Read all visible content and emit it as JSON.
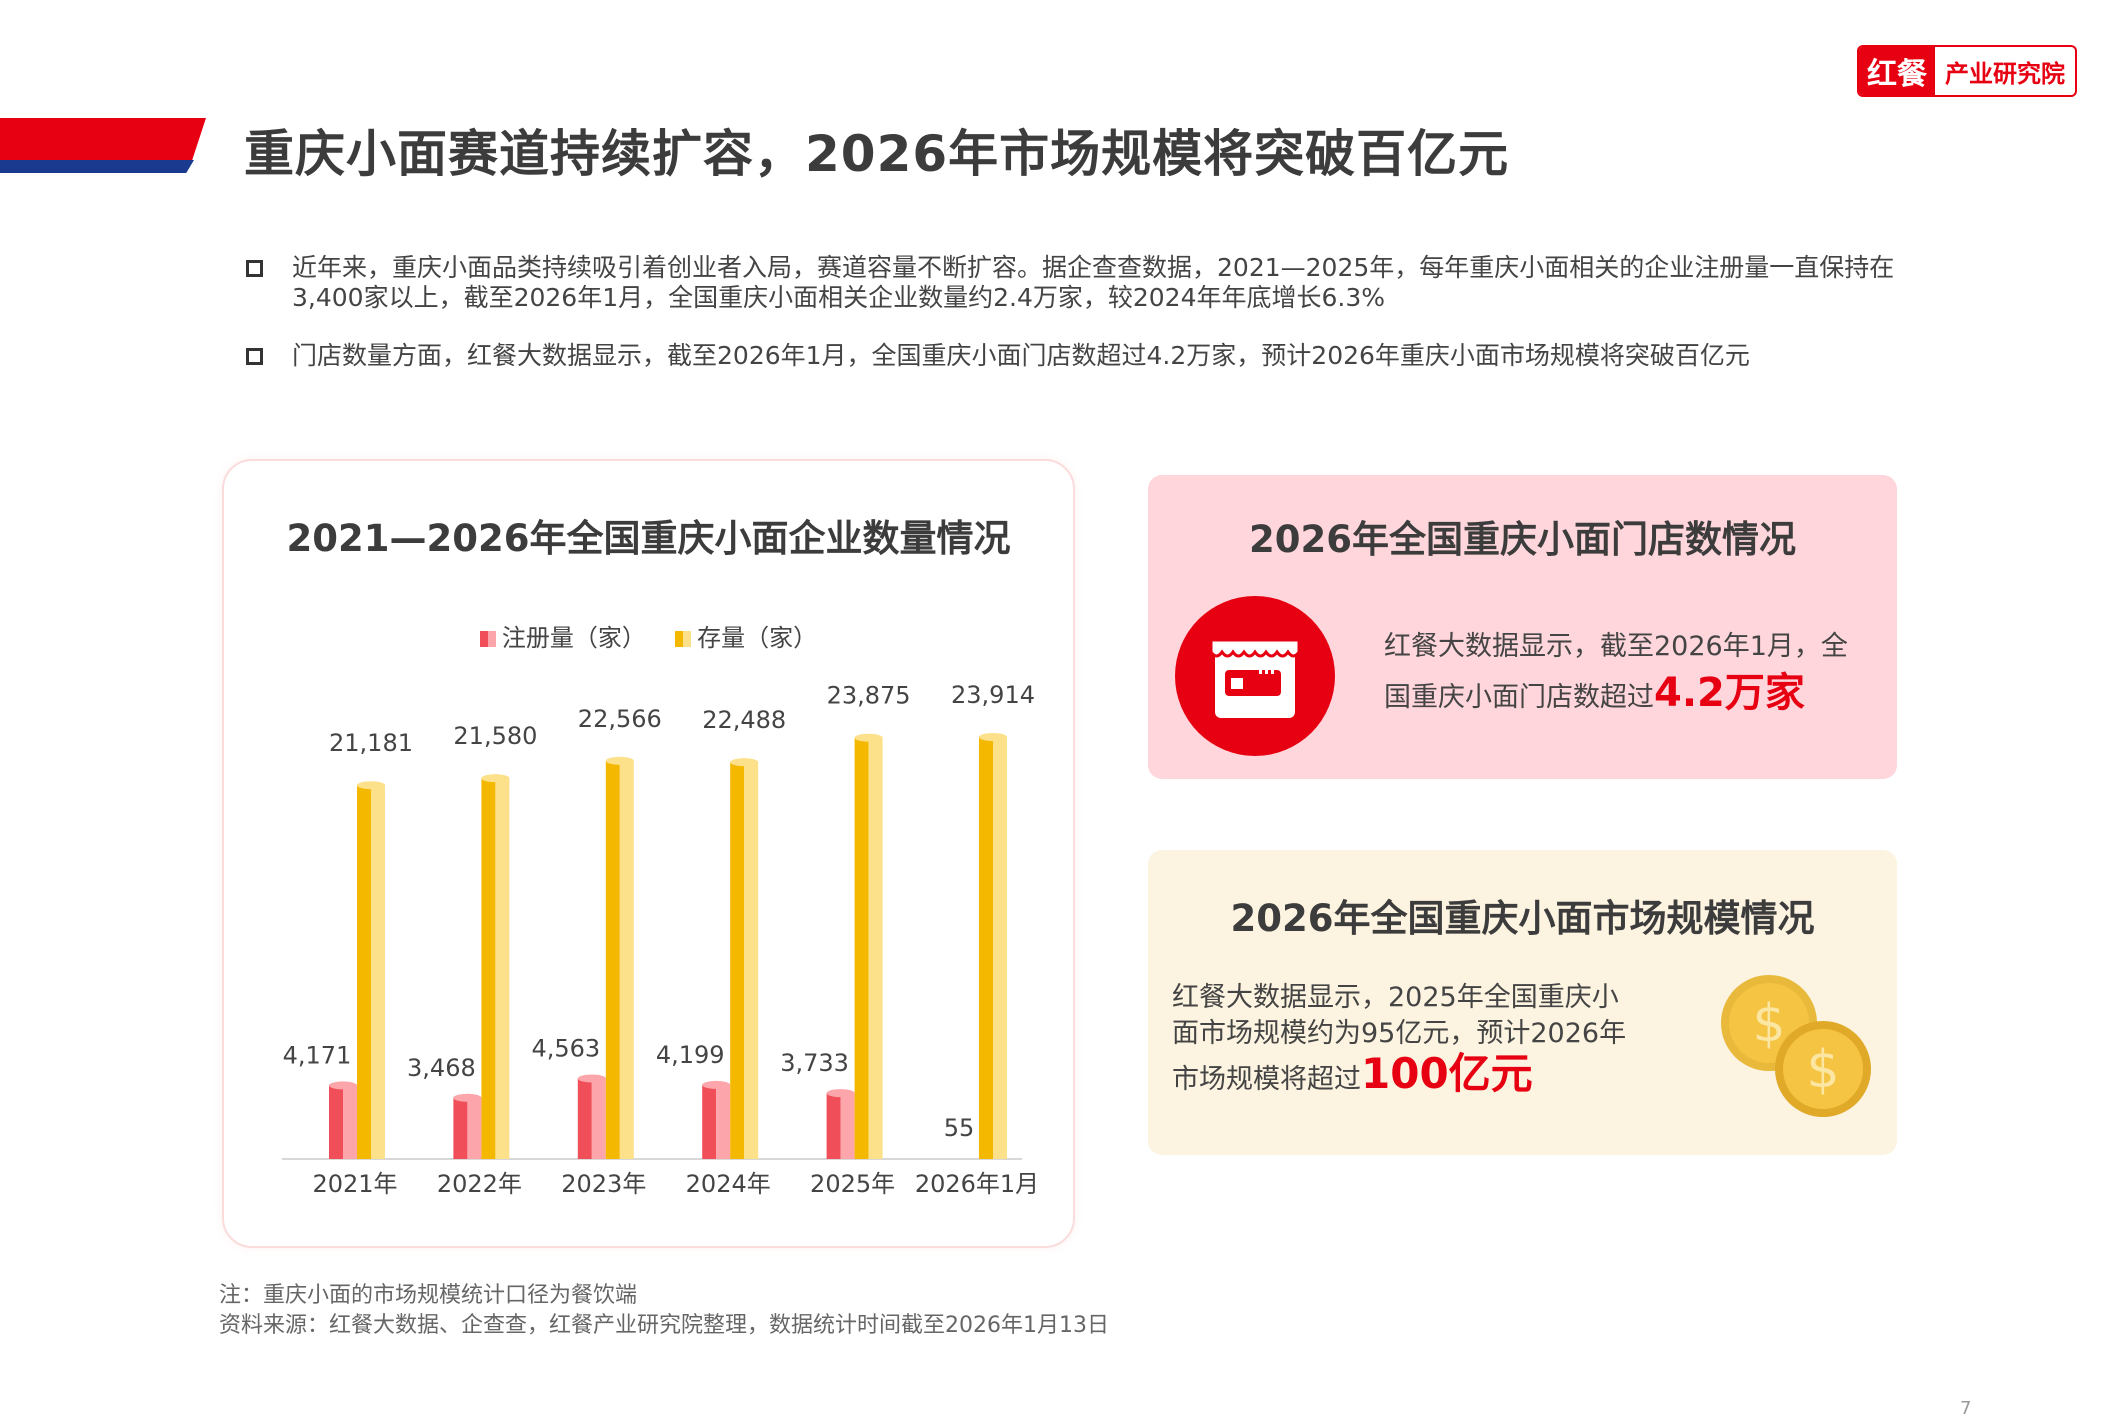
{
  "header": {
    "title": "重庆小面赛道持续扩容，2026年市场规模将突破百亿元",
    "logo": {
      "part1": "红餐",
      "part2": "产业研究院"
    }
  },
  "bullets": [
    "近年来，重庆小面品类持续吸引着创业者入局，赛道容量不断扩容。据企查查数据，2021—2025年，每年重庆小面相关的企业注册量一直保持在3,400家以上，截至2026年1月，全国重庆小面相关企业数量约2.4万家，较2024年年底增长6.3%",
    "门店数量方面，红餐大数据显示，截至2026年1月，全国重庆小面门店数超过4.2万家，预计2026年重庆小面市场规模将突破百亿元"
  ],
  "chart_data": {
    "type": "bar",
    "title": "2021—2026年全国重庆小面企业数量情况",
    "categories": [
      "2021年",
      "2022年",
      "2023年",
      "2024年",
      "2025年",
      "2026年1月"
    ],
    "series": [
      {
        "name": "注册量（家）",
        "values": [
          4171,
          3468,
          4563,
          4199,
          3733,
          55
        ],
        "labels": [
          "4,171",
          "3,468",
          "4,563",
          "4,199",
          "3,733",
          "55"
        ],
        "color": "#f26b73"
      },
      {
        "name": "存量（家）",
        "values": [
          21181,
          21580,
          22566,
          22488,
          23875,
          23914
        ],
        "labels": [
          "21,181",
          "21,580",
          "22,566",
          "22,488",
          "23,875",
          "23,914"
        ],
        "color": "#f5b800"
      }
    ],
    "legend": "top",
    "grid": false,
    "ylim": [
      0,
      24000
    ]
  },
  "store_card": {
    "title": "2026年全国重庆小面门店数情况",
    "text_line1": "红餐大数据显示，截至2026年1月，全",
    "text_line2": "国重庆小面门店数超过",
    "highlight": "4.2万家",
    "icon": "store-icon"
  },
  "market_card": {
    "title": "2026年全国重庆小面市场规模情况",
    "text_line1": "红餐大数据显示，2025年全国重庆小",
    "text_line2": "面市场规模约为95亿元，预计2026年",
    "text_line3": "市场规模将超过",
    "highlight": "100亿元",
    "icon": "coins-icon"
  },
  "footer": {
    "note": "注：重庆小面的市场规模统计口径为餐饮端",
    "source": "资料来源：红餐大数据、企查查，红餐产业研究院整理，数据统计时间截至2026年1月13日",
    "page": "7"
  },
  "colors": {
    "brand_red": "#e60012",
    "brand_blue": "#1a3a8f"
  }
}
